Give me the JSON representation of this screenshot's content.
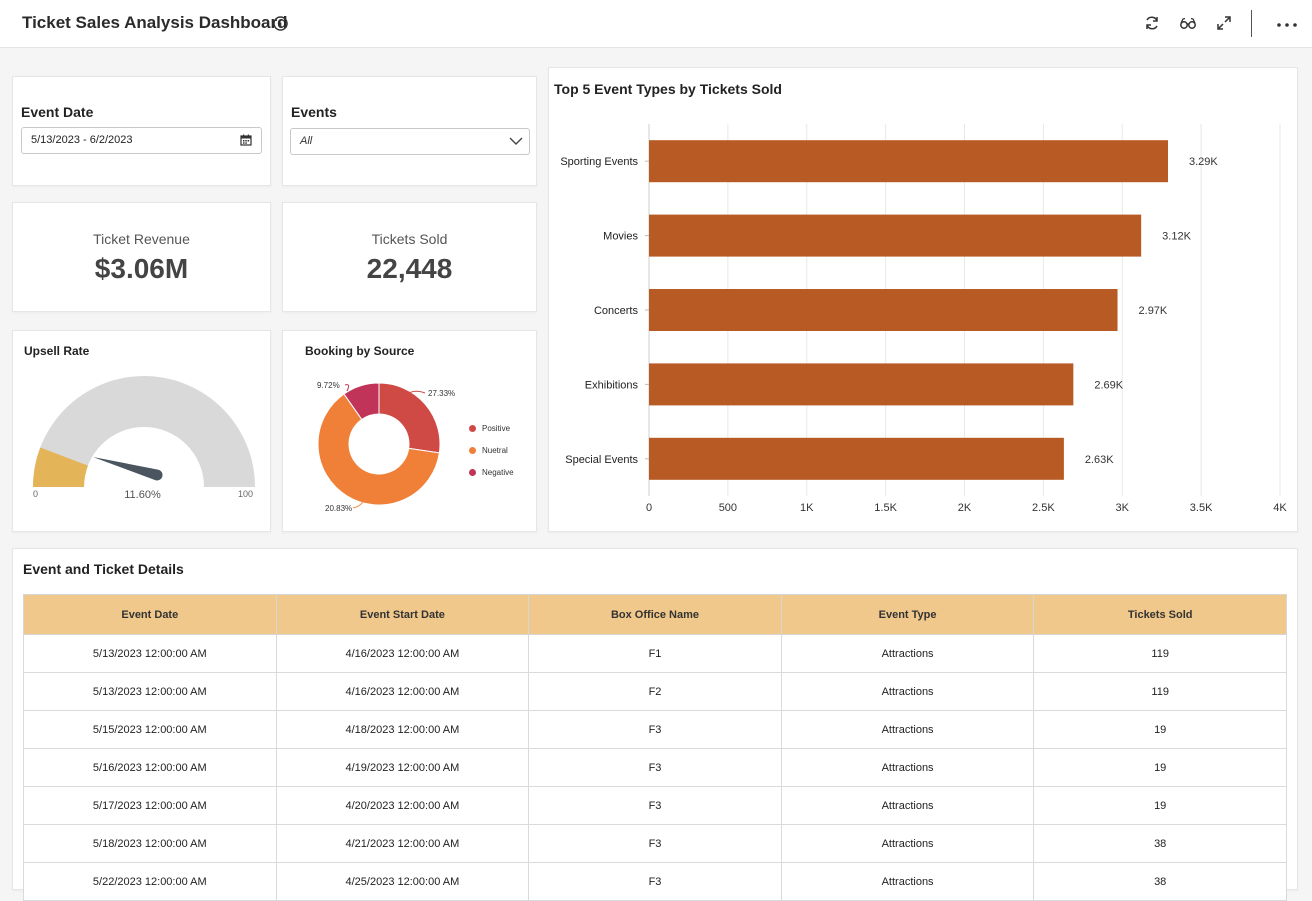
{
  "header": {
    "title": "Ticket Sales Analysis Dashboard",
    "icons": [
      "info-icon",
      "refresh-icon",
      "glasses-icon",
      "expand-icon",
      "more-icon"
    ]
  },
  "filters": {
    "event_date": {
      "label": "Event Date",
      "value": "5/13/2023 - 6/2/2023"
    },
    "events": {
      "label": "Events",
      "value": "All"
    }
  },
  "kpis": {
    "revenue": {
      "label": "Ticket Revenue",
      "value": "$3.06M"
    },
    "tickets": {
      "label": "Tickets Sold",
      "value": "22,448"
    }
  },
  "gauge": {
    "title": "Upsell Rate",
    "min": "0",
    "max": "100",
    "value": 11.6,
    "value_label": "11.60%",
    "fill_color": "#e4b459",
    "track_color": "#d9d9d9",
    "needle_color": "#4a5560"
  },
  "donut": {
    "title": "Booking by Source",
    "slices": [
      {
        "name": "Positive",
        "pct": 27.33,
        "label": "27.33%",
        "color": "#cf4a45"
      },
      {
        "name": "Nuetral",
        "pct": 62.95,
        "label": "",
        "color": "#f07f38"
      },
      {
        "name": "Negative",
        "pct": 9.72,
        "label": "9.72%",
        "color": "#c0345a"
      }
    ],
    "extra_label": "20.83%"
  },
  "chart_data": {
    "type": "bar",
    "orientation": "horizontal",
    "title": "Top 5 Event Types by Tickets Sold",
    "categories": [
      "Sporting Events",
      "Movies",
      "Concerts",
      "Exhibitions",
      "Special Events"
    ],
    "values": [
      3290,
      3120,
      2970,
      2690,
      2630
    ],
    "data_labels": [
      "3.29K",
      "3.12K",
      "2.97K",
      "2.69K",
      "2.63K"
    ],
    "xlim": [
      0,
      4000
    ],
    "x_ticks": [
      0,
      500,
      1000,
      1500,
      2000,
      2500,
      3000,
      3500,
      4000
    ],
    "x_tick_labels": [
      "0",
      "500",
      "1K",
      "1.5K",
      "2K",
      "2.5K",
      "3K",
      "3.5K",
      "4K"
    ],
    "grid": true,
    "bar_color": "#b85a23"
  },
  "details": {
    "title": "Event and Ticket Details",
    "columns": [
      "Event Date",
      "Event Start Date",
      "Box Office Name",
      "Event Type",
      "Tickets Sold"
    ],
    "rows": [
      [
        "5/13/2023 12:00:00 AM",
        "4/16/2023 12:00:00 AM",
        "F1",
        "Attractions",
        "119"
      ],
      [
        "5/13/2023 12:00:00 AM",
        "4/16/2023 12:00:00 AM",
        "F2",
        "Attractions",
        "119"
      ],
      [
        "5/15/2023 12:00:00 AM",
        "4/18/2023 12:00:00 AM",
        "F3",
        "Attractions",
        "19"
      ],
      [
        "5/16/2023 12:00:00 AM",
        "4/19/2023 12:00:00 AM",
        "F3",
        "Attractions",
        "19"
      ],
      [
        "5/17/2023 12:00:00 AM",
        "4/20/2023 12:00:00 AM",
        "F3",
        "Attractions",
        "19"
      ],
      [
        "5/18/2023 12:00:00 AM",
        "4/21/2023 12:00:00 AM",
        "F3",
        "Attractions",
        "38"
      ],
      [
        "5/22/2023 12:00:00 AM",
        "4/25/2023 12:00:00 AM",
        "F3",
        "Attractions",
        "38"
      ]
    ]
  }
}
